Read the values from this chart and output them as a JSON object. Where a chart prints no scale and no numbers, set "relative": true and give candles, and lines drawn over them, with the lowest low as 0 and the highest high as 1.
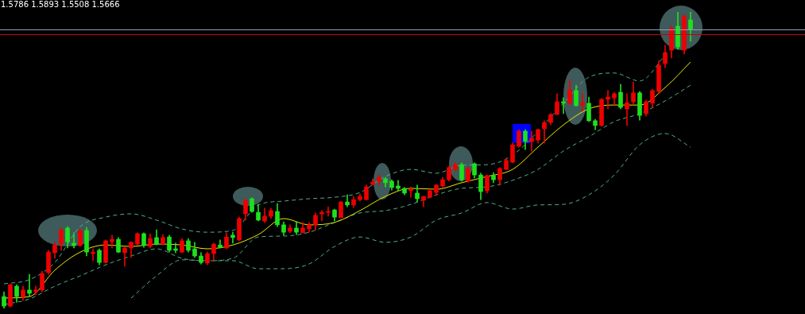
{
  "chart_data": {
    "type": "candlestick",
    "relative": true,
    "annotations": [
      "1.5786 1.5893 1.5508 1.5666"
    ],
    "categories": [
      null,
      null,
      null,
      null,
      null,
      null,
      null,
      null,
      null,
      null,
      null,
      null,
      null,
      null,
      null,
      null,
      null,
      null,
      null,
      null,
      null,
      null,
      null,
      null,
      null,
      null,
      null,
      null,
      null,
      null,
      null,
      null,
      null,
      null,
      null,
      null,
      null,
      null,
      null,
      null,
      null,
      null,
      null,
      null,
      null,
      null,
      null,
      null,
      null,
      null,
      null,
      null,
      null,
      null,
      null,
      null,
      null,
      null,
      null,
      null,
      null,
      null,
      null,
      null,
      null,
      null,
      null,
      null,
      null,
      null,
      null,
      null,
      null,
      null,
      null,
      null,
      null,
      null,
      null,
      null,
      null,
      null,
      null,
      null,
      null,
      null,
      null,
      null,
      null,
      null,
      null,
      null,
      null,
      null,
      null,
      null,
      null,
      null,
      null,
      null,
      null,
      null,
      null,
      null,
      null,
      null,
      null,
      null,
      null
    ],
    "ohlc": [
      [
        0.04,
        0.056,
        0,
        0.008
      ],
      [
        0.008,
        0.083,
        0.005,
        0.08
      ],
      [
        0.075,
        0.08,
        0.021,
        0.04
      ],
      [
        0.04,
        0.075,
        0.027,
        0.062
      ],
      [
        0.062,
        0.115,
        0.04,
        0.051
      ],
      [
        0.056,
        0.075,
        0.046,
        0.062
      ],
      [
        0.062,
        0.126,
        0.056,
        0.118
      ],
      [
        0.121,
        0.196,
        0.115,
        0.19
      ],
      [
        0.188,
        0.223,
        0.169,
        0.214
      ],
      [
        0.217,
        0.271,
        0.196,
        0.265
      ],
      [
        0.271,
        0.276,
        0.204,
        0.225
      ],
      [
        0.22,
        0.255,
        0.204,
        0.212
      ],
      [
        0.212,
        0.265,
        0.209,
        0.263
      ],
      [
        0.263,
        0.273,
        0.177,
        0.19
      ],
      [
        0.185,
        0.201,
        0.161,
        0.19
      ],
      [
        0.196,
        0.201,
        0.147,
        0.155
      ],
      [
        0.155,
        0.231,
        0.153,
        0.228
      ],
      [
        0.225,
        0.247,
        0.204,
        0.233
      ],
      [
        0.233,
        0.239,
        0.188,
        0.19
      ],
      [
        0.188,
        0.206,
        0.142,
        0.204
      ],
      [
        0.204,
        0.225,
        0.172,
        0.223
      ],
      [
        0.217,
        0.255,
        0.214,
        0.252
      ],
      [
        0.252,
        0.255,
        0.206,
        0.212
      ],
      [
        0.209,
        0.252,
        0.204,
        0.236
      ],
      [
        0.239,
        0.265,
        0.214,
        0.217
      ],
      [
        0.217,
        0.249,
        0.214,
        0.239
      ],
      [
        0.241,
        0.247,
        0.19,
        0.196
      ],
      [
        0.201,
        0.22,
        0.188,
        0.196
      ],
      [
        0.19,
        0.236,
        0.188,
        0.228
      ],
      [
        0.228,
        0.236,
        0.19,
        0.196
      ],
      [
        0.201,
        0.223,
        0.172,
        0.177
      ],
      [
        0.177,
        0.188,
        0.15,
        0.155
      ],
      [
        0.153,
        0.19,
        0.147,
        0.185
      ],
      [
        0.185,
        0.22,
        0.161,
        0.217
      ],
      [
        0.214,
        0.231,
        0.204,
        0.206
      ],
      [
        0.204,
        0.255,
        0.201,
        0.241
      ],
      [
        0.247,
        0.257,
        0.22,
        0.239
      ],
      [
        0.231,
        0.308,
        0.228,
        0.303
      ],
      [
        0.319,
        0.367,
        0.298,
        0.365
      ],
      [
        0.37,
        0.373,
        0.324,
        0.327
      ],
      [
        0.324,
        0.351,
        0.295,
        0.298
      ],
      [
        0.295,
        0.338,
        0.29,
        0.311
      ],
      [
        0.311,
        0.338,
        0.303,
        0.33
      ],
      [
        0.327,
        0.354,
        0.276,
        0.282
      ],
      [
        0.282,
        0.292,
        0.247,
        0.257
      ],
      [
        0.26,
        0.282,
        0.255,
        0.271
      ],
      [
        0.271,
        0.292,
        0.249,
        0.257
      ],
      [
        0.255,
        0.29,
        0.255,
        0.271
      ],
      [
        0.268,
        0.29,
        0.257,
        0.282
      ],
      [
        0.282,
        0.322,
        0.263,
        0.314
      ],
      [
        0.319,
        0.33,
        0.295,
        0.324
      ],
      [
        0.324,
        0.343,
        0.311,
        0.327
      ],
      [
        0.332,
        0.335,
        0.295,
        0.308
      ],
      [
        0.306,
        0.362,
        0.306,
        0.359
      ],
      [
        0.359,
        0.383,
        0.343,
        0.349
      ],
      [
        0.349,
        0.378,
        0.34,
        0.367
      ],
      [
        0.367,
        0.386,
        0.362,
        0.378
      ],
      [
        0.367,
        0.416,
        0.365,
        0.41
      ],
      [
        0.418,
        0.437,
        0.416,
        0.426
      ],
      [
        0.429,
        0.45,
        0.416,
        0.442
      ],
      [
        0.437,
        0.442,
        0.41,
        0.424
      ],
      [
        0.429,
        0.434,
        0.399,
        0.408
      ],
      [
        0.413,
        0.432,
        0.397,
        0.405
      ],
      [
        0.405,
        0.408,
        0.383,
        0.389
      ],
      [
        0.397,
        0.41,
        0.375,
        0.402
      ],
      [
        0.389,
        0.416,
        0.359,
        0.37
      ],
      [
        0.365,
        0.378,
        0.343,
        0.378
      ],
      [
        0.375,
        0.402,
        0.373,
        0.397
      ],
      [
        0.391,
        0.418,
        0.381,
        0.416
      ],
      [
        0.413,
        0.442,
        0.408,
        0.434
      ],
      [
        0.434,
        0.48,
        0.429,
        0.475
      ],
      [
        0.469,
        0.491,
        0.464,
        0.485
      ],
      [
        0.485,
        0.491,
        0.429,
        0.434
      ],
      [
        0.429,
        0.477,
        0.426,
        0.472
      ],
      [
        0.488,
        0.491,
        0.44,
        0.45
      ],
      [
        0.45,
        0.456,
        0.367,
        0.394
      ],
      [
        0.397,
        0.45,
        0.389,
        0.448
      ],
      [
        0.448,
        0.458,
        0.424,
        0.434
      ],
      [
        0.434,
        0.475,
        0.416,
        0.472
      ],
      [
        0.469,
        0.507,
        0.469,
        0.499
      ],
      [
        0.493,
        0.558,
        0.491,
        0.552
      ],
      [
        0.547,
        0.603,
        0.544,
        0.598
      ],
      [
        0.598,
        0.603,
        0.536,
        0.563
      ],
      [
        0.563,
        0.598,
        0.531,
        0.574
      ],
      [
        0.568,
        0.606,
        0.558,
        0.603
      ],
      [
        0.606,
        0.633,
        0.558,
        0.627
      ],
      [
        0.627,
        0.657,
        0.619,
        0.654
      ],
      [
        0.654,
        0.724,
        0.654,
        0.697
      ],
      [
        0.697,
        0.71,
        0.657,
        0.692
      ],
      [
        0.692,
        0.772,
        0.686,
        0.737
      ],
      [
        0.735,
        0.753,
        0.681,
        0.684
      ],
      [
        0.686,
        0.724,
        0.665,
        0.694
      ],
      [
        0.692,
        0.713,
        0.63,
        0.633
      ],
      [
        0.633,
        0.638,
        0.603,
        0.617
      ],
      [
        0.617,
        0.708,
        0.614,
        0.705
      ],
      [
        0.705,
        0.735,
        0.673,
        0.713
      ],
      [
        0.71,
        0.729,
        0.686,
        0.724
      ],
      [
        0.729,
        0.756,
        0.673,
        0.678
      ],
      [
        0.673,
        0.724,
        0.617,
        0.694
      ],
      [
        0.697,
        0.764,
        0.689,
        0.727
      ],
      [
        0.727,
        0.732,
        0.635,
        0.651
      ],
      [
        0.657,
        0.702,
        0.649,
        0.697
      ],
      [
        0.692,
        0.74,
        0.678,
        0.735
      ],
      [
        0.732,
        0.836,
        0.727,
        0.82
      ],
      [
        0.826,
        0.887,
        0.812,
        0.863
      ],
      [
        0.871,
        0.952,
        0.845,
        0.944
      ],
      [
        0.952,
        1,
        0.874,
        0.882
      ],
      [
        0.871,
        0.992,
        0.858,
        0.984
      ],
      [
        0.973,
        1,
        0.901,
        0.941
      ]
    ],
    "colors": [
      "#1ee01e",
      "#ee0000",
      "#1ee01e",
      "#ee0000",
      "#1ee01e",
      "#ee0000",
      "#ee0000",
      "#ee0000",
      "#ee0000",
      "#ee0000",
      "#1ee01e",
      "#1ee01e",
      "#ee0000",
      "#1ee01e",
      "#ee0000",
      "#1ee01e",
      "#ee0000",
      "#ee0000",
      "#1ee01e",
      "#ee0000",
      "#ee0000",
      "#ee0000",
      "#1ee01e",
      "#ee0000",
      "#1ee01e",
      "#ee0000",
      "#1ee01e",
      "#1ee01e",
      "#ee0000",
      "#1ee01e",
      "#1ee01e",
      "#1ee01e",
      "#ee0000",
      "#ee0000",
      "#1ee01e",
      "#ee0000",
      "#1ee01e",
      "#ee0000",
      "#ee0000",
      "#1ee01e",
      "#1ee01e",
      "#ee0000",
      "#ee0000",
      "#1ee01e",
      "#1ee01e",
      "#ee0000",
      "#1ee01e",
      "#ee0000",
      "#ee0000",
      "#ee0000",
      "#ee0000",
      "#ee0000",
      "#1ee01e",
      "#ee0000",
      "#1ee01e",
      "#ee0000",
      "#ee0000",
      "#ee0000",
      "#ee0000",
      "#ee0000",
      "#1ee01e",
      "#1ee01e",
      "#1ee01e",
      "#1ee01e",
      "#ee0000",
      "#1ee01e",
      "#ee0000",
      "#ee0000",
      "#ee0000",
      "#ee0000",
      "#ee0000",
      "#ee0000",
      "#1ee01e",
      "#ee0000",
      "#1ee01e",
      "#1ee01e",
      "#ee0000",
      "#1ee01e",
      "#ee0000",
      "#ee0000",
      "#ee0000",
      "#ee0000",
      "#1ee01e",
      "#ee0000",
      "#ee0000",
      "#ee0000",
      "#ee0000",
      "#ee0000",
      "#1ee01e",
      "#ee0000",
      "#1ee01e",
      "#ee0000",
      "#1ee01e",
      "#1ee01e",
      "#ee0000",
      "#ee0000",
      "#ee0000",
      "#1ee01e",
      "#ee0000",
      "#ee0000",
      "#1ee01e",
      "#ee0000",
      "#ee0000",
      "#ee0000",
      "#ee0000",
      "#ee0000",
      "#1ee01e",
      "#ee0000",
      "#1ee01e"
    ],
    "series": [
      {
        "type": "line",
        "color": "#e8e800",
        "line_style": "solid",
        "values": [
          0.035,
          null,
          null,
          null,
          0.04,
          null,
          null,
          null,
          0.129,
          null,
          null,
          null,
          0.19,
          null,
          null,
          null,
          0.214,
          null,
          null,
          null,
          0.209,
          null,
          null,
          null,
          0.217,
          null,
          null,
          null,
          0.214,
          null,
          null,
          null,
          0.201,
          null,
          null,
          null,
          0.214,
          null,
          null,
          null,
          0.249,
          null,
          null,
          null,
          0.303,
          null,
          null,
          null,
          0.282,
          null,
          null,
          null,
          0.29,
          null,
          null,
          null,
          0.33,
          null,
          null,
          null,
          0.378,
          null,
          null,
          null,
          0.405,
          null,
          null,
          null,
          0.402,
          null,
          null,
          null,
          0.424,
          null,
          null,
          null,
          0.445,
          null,
          null,
          null,
          0.469,
          null,
          null,
          null,
          0.544,
          null,
          null,
          null,
          0.619,
          null,
          null,
          null,
          0.673,
          null,
          null,
          null,
          0.686,
          null,
          null,
          null,
          0.686,
          null,
          null,
          null,
          0.745,
          null,
          null,
          null,
          0.831
        ]
      },
      {
        "type": "line",
        "color": "#4fae8c",
        "line_style": "dashed",
        "values": [
          0.083,
          null,
          null,
          null,
          0.097,
          null,
          null,
          null,
          0.155,
          null,
          null,
          null,
          0.276,
          null,
          null,
          null,
          0.308,
          null,
          null,
          null,
          0.319,
          null,
          null,
          null,
          0.298,
          null,
          null,
          null,
          0.268,
          null,
          null,
          null,
          0.257,
          null,
          null,
          null,
          0.263,
          null,
          null,
          null,
          0.349,
          null,
          null,
          null,
          0.362,
          null,
          null,
          null,
          0.37,
          null,
          null,
          null,
          0.375,
          null,
          null,
          null,
          0.391,
          null,
          null,
          null,
          0.445,
          null,
          null,
          null,
          0.469,
          null,
          null,
          null,
          0.456,
          null,
          null,
          null,
          0.483,
          null,
          null,
          null,
          0.485,
          null,
          null,
          null,
          0.517,
          null,
          null,
          null,
          null,
          null,
          null,
          null,
          0.692,
          null,
          null,
          null,
          0.78,
          null,
          null,
          null,
          0.794,
          null,
          null,
          null,
          0.767,
          null,
          null,
          null,
          0.853,
          null,
          null,
          null,
          null
        ]
      },
      {
        "type": "line",
        "color": "#4fae8c",
        "line_style": "dashed",
        "values": [
          0.013,
          null,
          null,
          null,
          0.032,
          null,
          null,
          null,
          0.075,
          null,
          null,
          null,
          0.11,
          null,
          null,
          null,
          0.147,
          null,
          null,
          null,
          0.177,
          null,
          null,
          null,
          0.201,
          null,
          null,
          null,
          0.169,
          null,
          null,
          null,
          0.161,
          null,
          null,
          null,
          0.169,
          null,
          null,
          null,
          0.241,
          null,
          null,
          null,
          0.244,
          null,
          null,
          null,
          0.257,
          null,
          null,
          null,
          0.29,
          null,
          null,
          null,
          0.322,
          null,
          null,
          null,
          0.33,
          null,
          null,
          null,
          0.351,
          null,
          null,
          null,
          0.383,
          null,
          null,
          null,
          0.405,
          null,
          null,
          null,
          0.41,
          null,
          null,
          null,
          0.432,
          null,
          null,
          null,
          0.469,
          null,
          null,
          null,
          0.531,
          null,
          null,
          null,
          0.579,
          null,
          null,
          null,
          0.63,
          null,
          null,
          null,
          0.657,
          null,
          null,
          null,
          0.7,
          null,
          null,
          null,
          0.753
        ]
      },
      {
        "type": "line",
        "color": "#4fae8c",
        "line_style": "dashed",
        "values": [
          null,
          null,
          null,
          null,
          null,
          null,
          null,
          null,
          null,
          null,
          null,
          null,
          null,
          null,
          null,
          null,
          null,
          null,
          null,
          null,
          0.035,
          null,
          null,
          null,
          0.11,
          null,
          null,
          null,
          0.164,
          null,
          null,
          null,
          0.161,
          null,
          null,
          null,
          0.161,
          null,
          null,
          null,
          0.134,
          null,
          null,
          null,
          0.134,
          null,
          null,
          null,
          0.15,
          null,
          null,
          null,
          0.209,
          null,
          null,
          null,
          0.241,
          null,
          null,
          null,
          0.223,
          null,
          null,
          null,
          0.241,
          null,
          null,
          null,
          0.298,
          null,
          null,
          null,
          0.322,
          null,
          null,
          null,
          0.357,
          null,
          null,
          null,
          0.335,
          null,
          null,
          null,
          0.349,
          null,
          null,
          null,
          0.351,
          null,
          null,
          null,
          0.383,
          null,
          null,
          null,
          0.45,
          null,
          null,
          null,
          0.552,
          null,
          null,
          null,
          0.59,
          null,
          null,
          null,
          0.544
        ]
      }
    ],
    "ref_lines": [
      {
        "axis": "y",
        "value": 0.941,
        "color": "#8f9fbf"
      },
      {
        "axis": "y",
        "value": 0.925,
        "color": "#cc0000"
      }
    ],
    "marker": "none",
    "legend": false
  }
}
